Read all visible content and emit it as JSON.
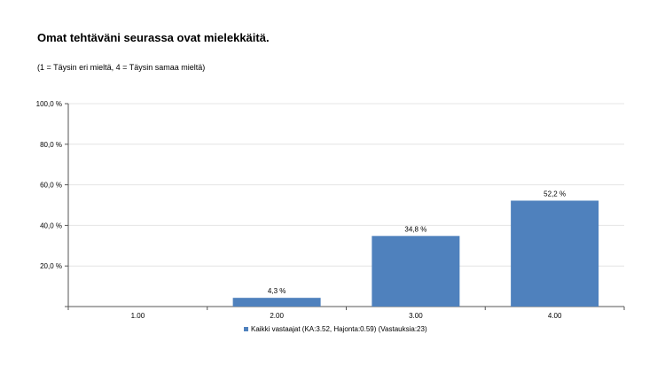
{
  "chart_data": {
    "type": "bar",
    "title": "Omat tehtäväni seurassa ovat mielekkäitä.",
    "subtitle": "(1 = Täysin eri mieltä, 4 = Täysin samaa mieltä)",
    "categories": [
      "1.00",
      "2.00",
      "3.00",
      "4.00"
    ],
    "series": [
      {
        "name": "Kaikki vastaajat (KA:3.52, Hajonta:0.59) (Vastauksia:23)",
        "values": [
          0,
          4.3,
          34.8,
          52.2
        ],
        "value_labels": [
          "",
          "4,3 %",
          "34,8 %",
          "52,2 %"
        ],
        "color": "#4f81bd"
      }
    ],
    "y_ticks": [
      {
        "value": 20,
        "label": "20,0 %"
      },
      {
        "value": 40,
        "label": "40,0 %"
      },
      {
        "value": 60,
        "label": "60,0 %"
      },
      {
        "value": 80,
        "label": "80,0 %"
      },
      {
        "value": 100,
        "label": "100,0 %"
      }
    ],
    "ylim": [
      0,
      100
    ],
    "grid": true,
    "legend_position": "bottom"
  }
}
